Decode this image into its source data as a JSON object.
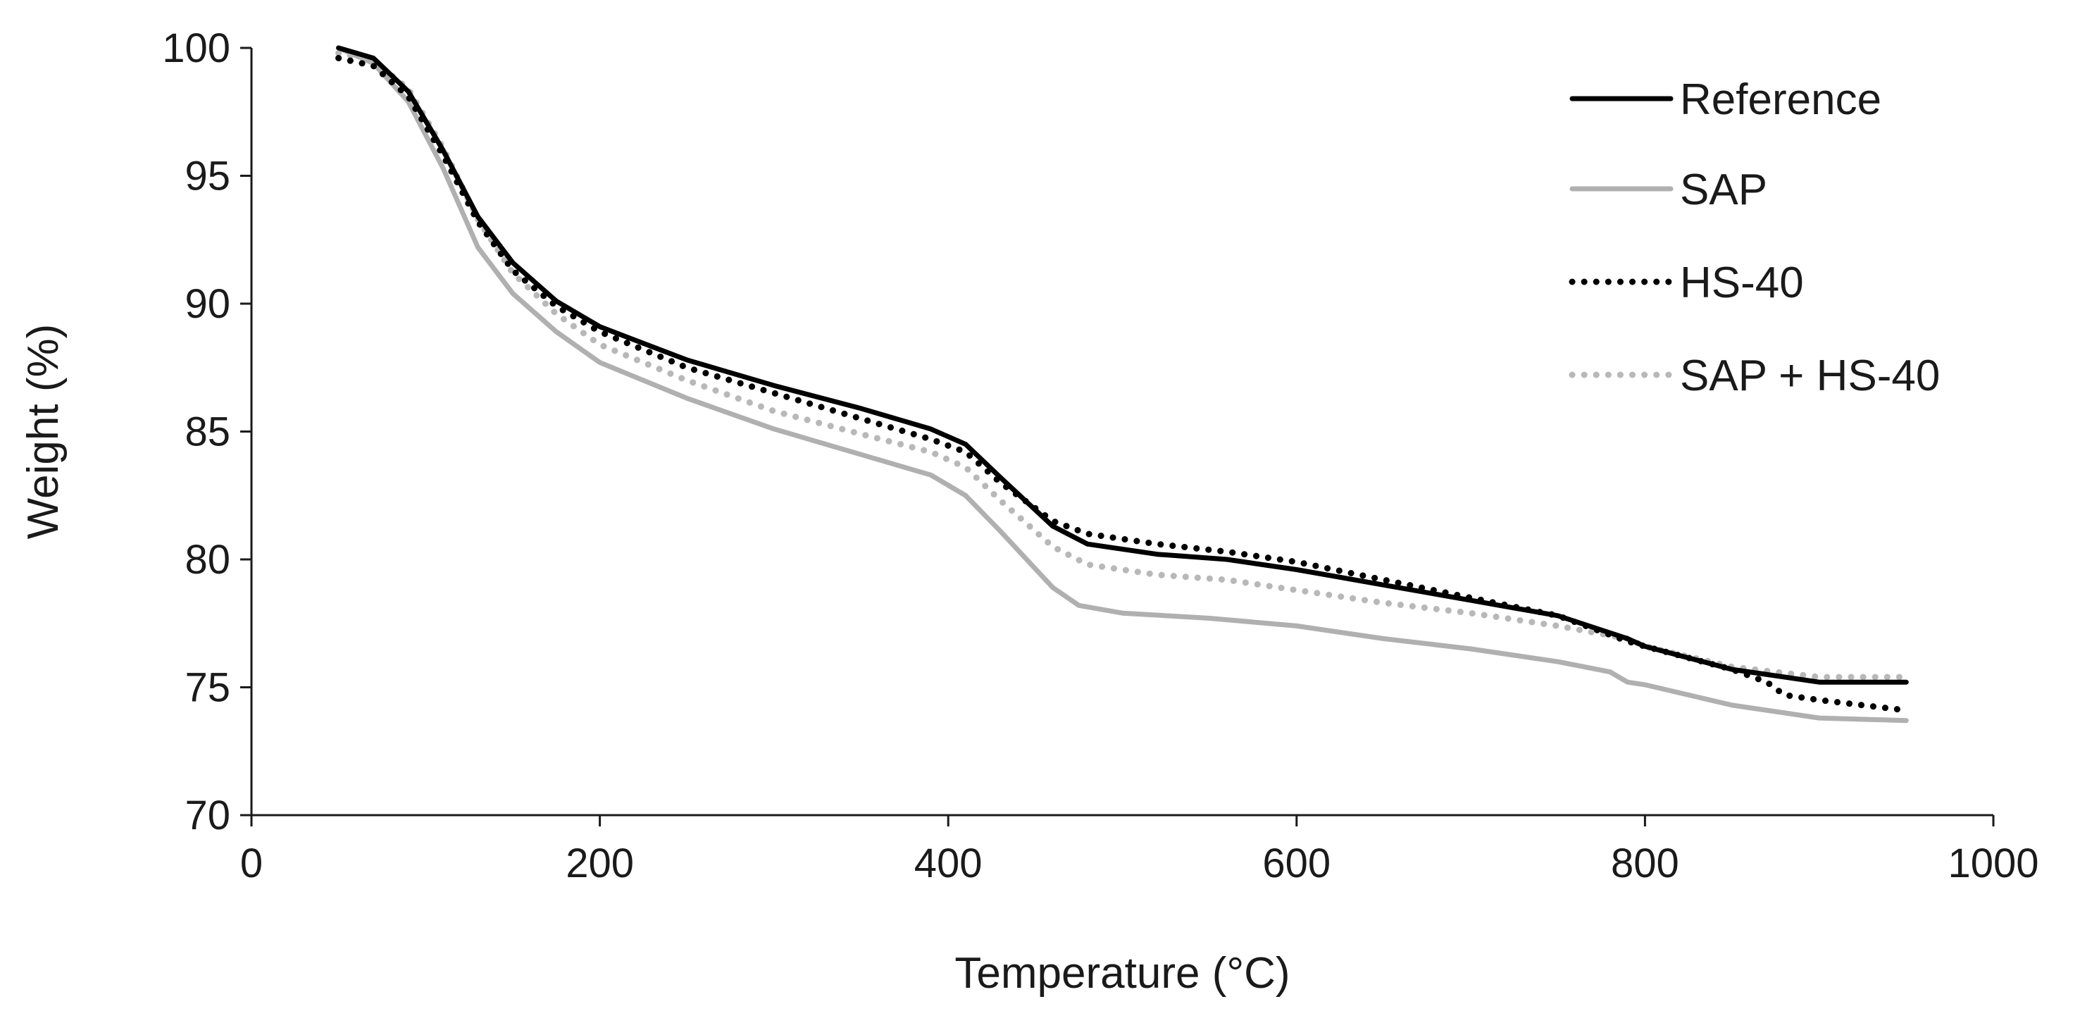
{
  "chart_data": {
    "type": "line",
    "title": "",
    "xlabel": "Temperature (°C)",
    "ylabel": "Weight (%)",
    "xlim": [
      0,
      1000
    ],
    "ylim": [
      70,
      100
    ],
    "xticks": [
      "0",
      "200",
      "400",
      "600",
      "800",
      "1000"
    ],
    "yticks": [
      "70",
      "75",
      "80",
      "85",
      "90",
      "95",
      "100"
    ],
    "grid": false,
    "legend_position": "top-right",
    "series": [
      {
        "name": "Reference",
        "color": "#000000",
        "style": "solid",
        "points": [
          [
            50,
            100
          ],
          [
            70,
            99.6
          ],
          [
            90,
            98.3
          ],
          [
            110,
            96
          ],
          [
            130,
            93.4
          ],
          [
            150,
            91.6
          ],
          [
            175,
            90.1
          ],
          [
            200,
            89.1
          ],
          [
            250,
            87.8
          ],
          [
            300,
            86.8
          ],
          [
            350,
            85.9
          ],
          [
            390,
            85.1
          ],
          [
            410,
            84.5
          ],
          [
            430,
            83.2
          ],
          [
            460,
            81.3
          ],
          [
            480,
            80.6
          ],
          [
            520,
            80.2
          ],
          [
            560,
            80
          ],
          [
            600,
            79.6
          ],
          [
            650,
            79
          ],
          [
            700,
            78.4
          ],
          [
            750,
            77.8
          ],
          [
            790,
            76.9
          ],
          [
            800,
            76.6
          ],
          [
            850,
            75.7
          ],
          [
            900,
            75.2
          ],
          [
            950,
            75.2
          ]
        ]
      },
      {
        "name": "SAP",
        "color": "#b0b0b0",
        "style": "solid",
        "points": [
          [
            50,
            100
          ],
          [
            70,
            99.4
          ],
          [
            90,
            97.9
          ],
          [
            110,
            95.3
          ],
          [
            130,
            92.2
          ],
          [
            150,
            90.4
          ],
          [
            175,
            88.9
          ],
          [
            200,
            87.7
          ],
          [
            250,
            86.3
          ],
          [
            300,
            85.1
          ],
          [
            350,
            84.1
          ],
          [
            390,
            83.3
          ],
          [
            410,
            82.5
          ],
          [
            430,
            81.1
          ],
          [
            460,
            78.9
          ],
          [
            475,
            78.2
          ],
          [
            500,
            77.9
          ],
          [
            550,
            77.7
          ],
          [
            600,
            77.4
          ],
          [
            650,
            76.9
          ],
          [
            700,
            76.5
          ],
          [
            750,
            76
          ],
          [
            780,
            75.6
          ],
          [
            790,
            75.2
          ],
          [
            800,
            75.1
          ],
          [
            850,
            74.3
          ],
          [
            900,
            73.8
          ],
          [
            950,
            73.7
          ]
        ]
      },
      {
        "name": "HS-40",
        "color": "#000000",
        "style": "dotted",
        "points": [
          [
            50,
            99.6
          ],
          [
            70,
            99.3
          ],
          [
            90,
            98.1
          ],
          [
            110,
            95.8
          ],
          [
            130,
            93.2
          ],
          [
            150,
            91.3
          ],
          [
            175,
            89.9
          ],
          [
            200,
            88.9
          ],
          [
            250,
            87.5
          ],
          [
            300,
            86.5
          ],
          [
            350,
            85.5
          ],
          [
            390,
            84.7
          ],
          [
            410,
            84.2
          ],
          [
            430,
            83
          ],
          [
            460,
            81.5
          ],
          [
            480,
            81
          ],
          [
            520,
            80.6
          ],
          [
            560,
            80.3
          ],
          [
            600,
            79.9
          ],
          [
            650,
            79.2
          ],
          [
            700,
            78.5
          ],
          [
            750,
            77.8
          ],
          [
            790,
            76.8
          ],
          [
            800,
            76.6
          ],
          [
            850,
            75.7
          ],
          [
            870,
            75.2
          ],
          [
            880,
            74.7
          ],
          [
            900,
            74.5
          ],
          [
            950,
            74.1
          ]
        ]
      },
      {
        "name": "SAP + HS-40",
        "color": "#b8b8b8",
        "style": "dotted",
        "points": [
          [
            50,
            99.8
          ],
          [
            70,
            99.5
          ],
          [
            90,
            98.4
          ],
          [
            110,
            96.1
          ],
          [
            130,
            93.3
          ],
          [
            150,
            91.2
          ],
          [
            175,
            89.6
          ],
          [
            200,
            88.4
          ],
          [
            250,
            87
          ],
          [
            300,
            85.8
          ],
          [
            350,
            84.9
          ],
          [
            390,
            84.2
          ],
          [
            410,
            83.6
          ],
          [
            430,
            82.3
          ],
          [
            460,
            80.5
          ],
          [
            480,
            79.8
          ],
          [
            520,
            79.4
          ],
          [
            560,
            79.2
          ],
          [
            600,
            78.8
          ],
          [
            650,
            78.3
          ],
          [
            700,
            77.9
          ],
          [
            750,
            77.4
          ],
          [
            790,
            76.9
          ],
          [
            800,
            76.6
          ],
          [
            850,
            75.8
          ],
          [
            900,
            75.4
          ],
          [
            950,
            75.4
          ]
        ]
      }
    ]
  }
}
